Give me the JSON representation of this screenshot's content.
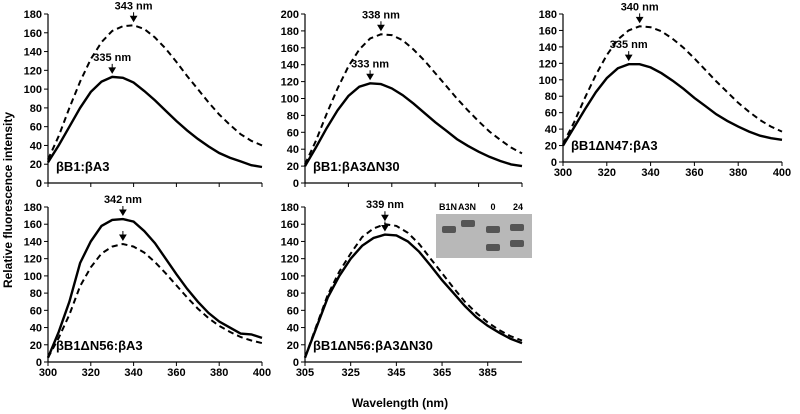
{
  "chart_data": [
    {
      "type": "line",
      "label": "βB1:βA3",
      "x": [
        300,
        305,
        310,
        315,
        320,
        325,
        330,
        335,
        340,
        345,
        350,
        355,
        360,
        365,
        370,
        375,
        380,
        385,
        390,
        395,
        400
      ],
      "xlim": [
        300,
        400
      ],
      "xticks": [
        300,
        320,
        340,
        360,
        380,
        400
      ],
      "xtick_labels": false,
      "ylim": [
        0,
        180
      ],
      "yticks": [
        0,
        20,
        40,
        60,
        80,
        100,
        120,
        140,
        160,
        180
      ],
      "series": [
        {
          "color": "#000000",
          "dash": false,
          "annotation": "335 nm",
          "values": [
            22,
            40,
            60,
            80,
            97,
            108,
            113,
            112,
            107,
            98,
            88,
            77,
            66,
            56,
            47,
            39,
            32,
            27,
            23,
            19,
            17
          ]
        },
        {
          "color": "#000000",
          "dash": true,
          "annotation": "343 nm",
          "values": [
            25,
            50,
            80,
            108,
            132,
            150,
            162,
            167,
            168,
            164,
            155,
            143,
            129,
            114,
            100,
            86,
            73,
            62,
            52,
            45,
            40
          ]
        }
      ]
    },
    {
      "type": "line",
      "label": "βB1:βA3ΔN30",
      "x": [
        300,
        305,
        310,
        315,
        320,
        325,
        330,
        335,
        340,
        345,
        350,
        355,
        360,
        365,
        370,
        375,
        380,
        385,
        390,
        395,
        400
      ],
      "xlim": [
        300,
        400
      ],
      "xticks": [
        300,
        320,
        340,
        360,
        380,
        400
      ],
      "xtick_labels": false,
      "ylim": [
        0,
        200
      ],
      "yticks": [
        0,
        20,
        40,
        60,
        80,
        100,
        120,
        140,
        160,
        180,
        200
      ],
      "series": [
        {
          "color": "#000000",
          "dash": false,
          "annotation": "333 nm",
          "values": [
            20,
            42,
            65,
            86,
            103,
            114,
            118,
            117,
            112,
            104,
            94,
            83,
            72,
            62,
            52,
            44,
            37,
            31,
            26,
            22,
            20
          ]
        },
        {
          "color": "#000000",
          "dash": true,
          "annotation": "338 nm",
          "values": [
            22,
            50,
            82,
            112,
            138,
            158,
            171,
            176,
            175,
            169,
            158,
            145,
            130,
            115,
            100,
            86,
            73,
            61,
            51,
            42,
            35
          ]
        }
      ]
    },
    {
      "type": "line",
      "label": "βB1ΔN47:βA3",
      "x": [
        300,
        305,
        310,
        315,
        320,
        325,
        330,
        335,
        340,
        345,
        350,
        355,
        360,
        365,
        370,
        375,
        380,
        385,
        390,
        395,
        400
      ],
      "xlim": [
        300,
        400
      ],
      "xticks": [
        300,
        320,
        340,
        360,
        380,
        400
      ],
      "xtick_labels": true,
      "ylim": [
        0,
        180
      ],
      "yticks": [
        0,
        20,
        40,
        60,
        80,
        100,
        120,
        140,
        160,
        180
      ],
      "series": [
        {
          "color": "#000000",
          "dash": false,
          "annotation": "335 nm",
          "values": [
            20,
            42,
            64,
            85,
            102,
            114,
            119,
            119,
            115,
            108,
            99,
            89,
            78,
            68,
            58,
            50,
            43,
            37,
            32,
            29,
            27
          ]
        },
        {
          "color": "#000000",
          "dash": true,
          "annotation": "340 nm",
          "values": [
            22,
            48,
            78,
            106,
            130,
            149,
            160,
            165,
            164,
            159,
            150,
            139,
            126,
            112,
            98,
            85,
            72,
            61,
            51,
            43,
            37
          ]
        }
      ]
    },
    {
      "type": "line",
      "label": "βB1ΔN56:βA3",
      "x": [
        300,
        305,
        310,
        315,
        320,
        325,
        330,
        335,
        340,
        345,
        350,
        355,
        360,
        365,
        370,
        375,
        380,
        385,
        390,
        395,
        400
      ],
      "xlim": [
        300,
        400
      ],
      "xticks": [
        300,
        320,
        340,
        360,
        380,
        400
      ],
      "xtick_labels": true,
      "ylim": [
        0,
        180
      ],
      "yticks": [
        0,
        20,
        40,
        60,
        80,
        100,
        120,
        140,
        160,
        180
      ],
      "series": [
        {
          "color": "#000000",
          "dash": false,
          "annotation": "342 nm",
          "values": [
            5,
            35,
            70,
            115,
            140,
            158,
            165,
            166,
            163,
            152,
            138,
            120,
            102,
            85,
            70,
            57,
            47,
            40,
            33,
            32,
            28
          ]
        },
        {
          "color": "#000000",
          "dash": true,
          "values": [
            5,
            28,
            55,
            88,
            110,
            126,
            134,
            137,
            134,
            127,
            116,
            103,
            89,
            75,
            62,
            51,
            42,
            35,
            29,
            25,
            22
          ]
        }
      ]
    },
    {
      "type": "line",
      "label": "βB1ΔN56:βA3ΔN30",
      "x": [
        305,
        310,
        315,
        320,
        325,
        330,
        335,
        340,
        345,
        350,
        355,
        360,
        365,
        370,
        375,
        380,
        385,
        390,
        395,
        400
      ],
      "xlim": [
        305,
        400
      ],
      "xticks": [
        305,
        325,
        345,
        365,
        385
      ],
      "xtick_labels": true,
      "ylim": [
        0,
        180
      ],
      "yticks": [
        0,
        20,
        40,
        60,
        80,
        100,
        120,
        140,
        160,
        180
      ],
      "inset_labels": [
        "B1N",
        "A3N",
        "0",
        "24"
      ],
      "series": [
        {
          "color": "#000000",
          "dash": false,
          "values": [
            5,
            40,
            75,
            100,
            120,
            135,
            144,
            148,
            147,
            140,
            128,
            112,
            95,
            80,
            65,
            52,
            42,
            34,
            27,
            22
          ]
        },
        {
          "color": "#000000",
          "dash": true,
          "annotation": "339 nm",
          "values": [
            5,
            42,
            78,
            105,
            126,
            145,
            155,
            160,
            158,
            150,
            137,
            120,
            103,
            86,
            70,
            57,
            46,
            37,
            30,
            25
          ]
        }
      ]
    }
  ],
  "y_label": "Relative fluorescence intensity",
  "x_label": "Wavelength (nm)"
}
